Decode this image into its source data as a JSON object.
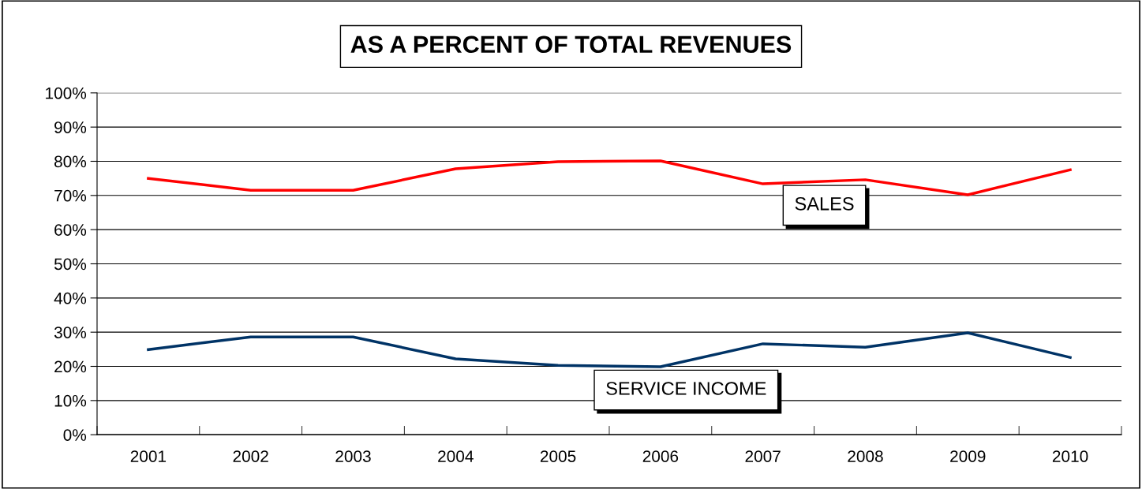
{
  "chart_data": {
    "type": "line",
    "title": "AS A PERCENT OF TOTAL REVENUES",
    "categories": [
      "2001",
      "2002",
      "2003",
      "2004",
      "2005",
      "2006",
      "2007",
      "2008",
      "2009",
      "2010"
    ],
    "series": [
      {
        "name": "SALES",
        "color": "#ff0000",
        "values": [
          75.0,
          71.5,
          71.5,
          77.8,
          79.9,
          80.1,
          73.4,
          74.6,
          70.2,
          77.5
        ]
      },
      {
        "name": "SERVICE INCOME",
        "color": "#003366",
        "values": [
          24.9,
          28.6,
          28.6,
          22.2,
          20.3,
          19.9,
          26.6,
          25.6,
          29.8,
          22.6
        ]
      }
    ],
    "ylim": [
      0,
      100
    ],
    "yticks": [
      {
        "value": 0,
        "label": "0%"
      },
      {
        "value": 10,
        "label": "10%"
      },
      {
        "value": 20,
        "label": "20%"
      },
      {
        "value": 30,
        "label": "30%"
      },
      {
        "value": 40,
        "label": "40%"
      },
      {
        "value": 50,
        "label": "50%"
      },
      {
        "value": 60,
        "label": "60%"
      },
      {
        "value": 70,
        "label": "70%"
      },
      {
        "value": 80,
        "label": "80%"
      },
      {
        "value": 90,
        "label": "90%"
      },
      {
        "value": 100,
        "label": "100%"
      }
    ],
    "grid": "y",
    "legend": false,
    "marker": "none",
    "line_style": "solid"
  }
}
